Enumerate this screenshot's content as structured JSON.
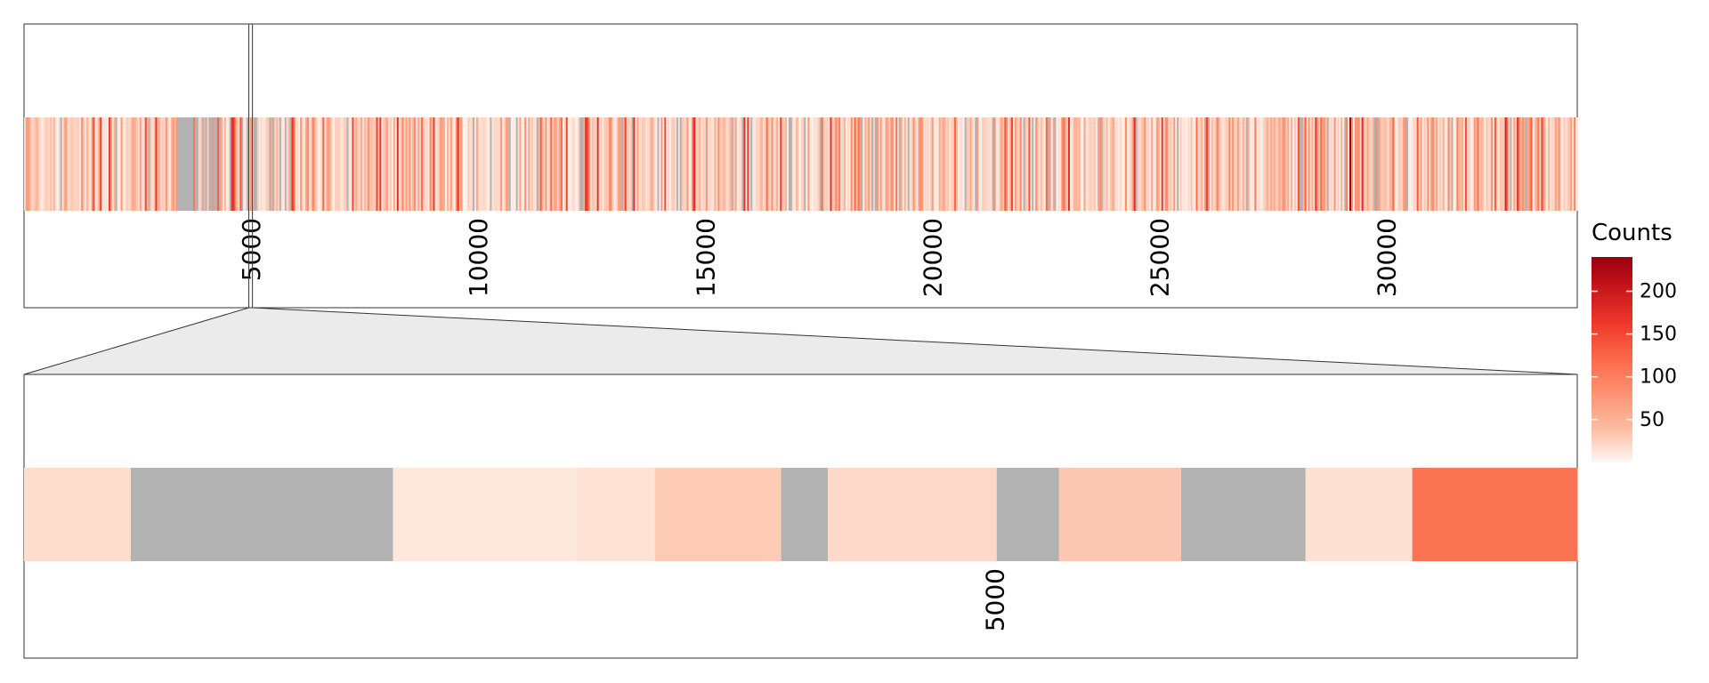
{
  "chart_data": {
    "type": "heatmap",
    "legend": {
      "title": "Counts",
      "ticks": [
        50,
        100,
        150,
        200
      ],
      "tick_labels": [
        "50",
        "100",
        "150",
        "200"
      ],
      "range": [
        1,
        240
      ],
      "colors": [
        "#fff5f0",
        "#fcbba1",
        "#fc9272",
        "#fb6a4a",
        "#ef3b2c",
        "#cb181d",
        "#99000d"
      ],
      "na_color": "#b2b2b2",
      "placement": "right"
    },
    "overview": {
      "x_range": [
        0,
        34200
      ],
      "x_ticks": [
        5000,
        10000,
        15000,
        20000,
        25000,
        30000
      ],
      "x_tick_labels": [
        "5000",
        "10000",
        "15000",
        "20000",
        "25000",
        "30000"
      ],
      "highlight_range": [
        4950,
        5030
      ],
      "n_cells": 900
    },
    "zoom": {
      "x_range": [
        4950,
        5030
      ],
      "x_ticks": [
        5000
      ],
      "x_tick_labels": [
        "5000"
      ],
      "segments": [
        {
          "start": 4950.0,
          "end": 4955.5,
          "count": 18
        },
        {
          "start": 4955.5,
          "end": 4969.0,
          "count": null
        },
        {
          "start": 4969.0,
          "end": 4978.5,
          "count": 10
        },
        {
          "start": 4978.5,
          "end": 4982.5,
          "count": 14
        },
        {
          "start": 4982.5,
          "end": 4989.0,
          "count": 30
        },
        {
          "start": 4989.0,
          "end": 4991.4,
          "count": null
        },
        {
          "start": 4991.4,
          "end": 5000.1,
          "count": 20
        },
        {
          "start": 5000.1,
          "end": 5003.3,
          "count": null
        },
        {
          "start": 5003.3,
          "end": 5009.6,
          "count": 32
        },
        {
          "start": 5009.6,
          "end": 5016.0,
          "count": null
        },
        {
          "start": 5016.0,
          "end": 5021.5,
          "count": 15
        },
        {
          "start": 5021.5,
          "end": 5030.0,
          "count": 110
        }
      ]
    }
  }
}
